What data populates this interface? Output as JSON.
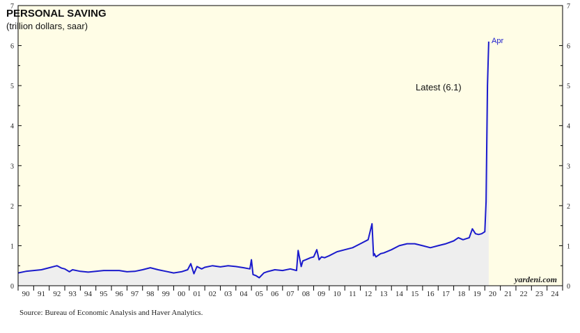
{
  "chart_data": {
    "type": "area",
    "title": "PERSONAL SAVING",
    "subtitle": "(trillion dollars, saar)",
    "ylim": [
      0,
      7
    ],
    "yticks": [
      "0",
      "1",
      "2",
      "3",
      "4",
      "5",
      "6",
      "7"
    ],
    "x_labels": [
      "90",
      "91",
      "92",
      "93",
      "94",
      "95",
      "96",
      "97",
      "98",
      "99",
      "00",
      "01",
      "02",
      "03",
      "04",
      "05",
      "06",
      "07",
      "08",
      "09",
      "10",
      "11",
      "12",
      "13",
      "14",
      "15",
      "16",
      "17",
      "18",
      "19",
      "20",
      "21",
      "22",
      "23",
      "24"
    ],
    "x_range": [
      1990,
      2025
    ],
    "series": [
      {
        "x": [
          1990.0,
          1990.5,
          1991.0,
          1991.5,
          1992.0,
          1992.5,
          1992.8,
          1993.0,
          1993.3,
          1993.5,
          1994.0,
          1994.5,
          1995.0,
          1995.5,
          1996.0,
          1996.5,
          1997.0,
          1997.5,
          1998.0,
          1998.5,
          1999.0,
          1999.5,
          2000.0,
          2000.5,
          2000.9,
          2001.1,
          2001.3,
          2001.5,
          2001.8,
          2002.0,
          2002.5,
          2003.0,
          2003.5,
          2004.0,
          2004.5,
          2004.9,
          2005.0,
          2005.1,
          2005.3,
          2005.5,
          2005.8,
          2006.0,
          2006.5,
          2007.0,
          2007.5,
          2007.9,
          2008.0,
          2008.2,
          2008.3,
          2008.5,
          2008.8,
          2009.0,
          2009.2,
          2009.35,
          2009.5,
          2009.7,
          2010.0,
          2010.5,
          2011.0,
          2011.5,
          2012.0,
          2012.5,
          2012.75,
          2012.85,
          2012.9,
          2013.0,
          2013.3,
          2013.5,
          2014.0,
          2014.5,
          2015.0,
          2015.5,
          2016.0,
          2016.5,
          2017.0,
          2017.5,
          2018.0,
          2018.3,
          2018.6,
          2019.0,
          2019.2,
          2019.4,
          2019.6,
          2019.8,
          2020.0,
          2020.08,
          2020.17,
          2020.25
        ],
        "values": [
          0.32,
          0.36,
          0.38,
          0.4,
          0.45,
          0.5,
          0.44,
          0.42,
          0.35,
          0.4,
          0.36,
          0.34,
          0.36,
          0.38,
          0.38,
          0.38,
          0.35,
          0.36,
          0.4,
          0.45,
          0.4,
          0.36,
          0.32,
          0.35,
          0.4,
          0.55,
          0.3,
          0.48,
          0.42,
          0.46,
          0.5,
          0.47,
          0.5,
          0.48,
          0.45,
          0.42,
          0.65,
          0.28,
          0.25,
          0.2,
          0.32,
          0.35,
          0.4,
          0.38,
          0.42,
          0.38,
          0.88,
          0.48,
          0.62,
          0.65,
          0.7,
          0.72,
          0.9,
          0.65,
          0.72,
          0.7,
          0.75,
          0.85,
          0.9,
          0.95,
          1.05,
          1.15,
          1.55,
          0.75,
          0.8,
          0.72,
          0.8,
          0.82,
          0.9,
          1.0,
          1.05,
          1.05,
          1.0,
          0.95,
          1.0,
          1.05,
          1.12,
          1.2,
          1.15,
          1.2,
          1.42,
          1.3,
          1.28,
          1.3,
          1.35,
          2.1,
          5.0,
          6.1
        ]
      }
    ],
    "annotations": [
      {
        "text": "Apr"
      },
      {
        "text": "Latest (6.1)"
      }
    ],
    "grid": false,
    "colors": {
      "plot_bg": "#fffde6",
      "line": "#1a1acc",
      "fill": "#eeeeee"
    }
  },
  "branding": "yardeni.com",
  "source_note": "Source: Bureau of Economic Analysis and Haver Analytics."
}
